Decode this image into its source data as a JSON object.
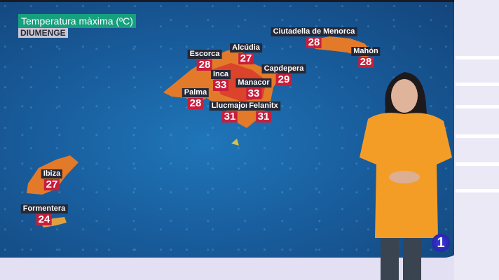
{
  "header": {
    "title": "Temperatura màxima (ºC)",
    "day": "DIUMENGE"
  },
  "cities": [
    {
      "name": "Ciutadella de Menorca",
      "temp": "28"
    },
    {
      "name": "Alcúdia",
      "temp": "27"
    },
    {
      "name": "Escorca",
      "temp": "28"
    },
    {
      "name": "Mahón",
      "temp": "28"
    },
    {
      "name": "Capdepera",
      "temp": "29"
    },
    {
      "name": "Inca",
      "temp": "33"
    },
    {
      "name": "Manacor",
      "temp": "33"
    },
    {
      "name": "Palma",
      "temp": "28"
    },
    {
      "name": "Llucmajor",
      "temp": "31"
    },
    {
      "name": "Felanitx",
      "temp": "31"
    },
    {
      "name": "Ibiza",
      "temp": "27"
    },
    {
      "name": "Formentera",
      "temp": "24"
    }
  ],
  "channel_logo": "1",
  "colors": {
    "sea": "#195e9e",
    "land": "#e07a28",
    "hot": "#d93a2a",
    "title_bg": "#17a07e",
    "temp_bg": "#c81e3c"
  }
}
